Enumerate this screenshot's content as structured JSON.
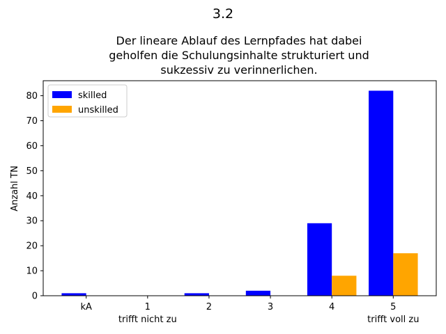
{
  "chart_data": {
    "type": "bar",
    "suptitle": "3.2",
    "title_lines": [
      "Der lineare Ablauf des Lernpfades hat dabei",
      "geholfen die Schulungsinhalte strukturiert und",
      "sukzessiv zu verinnerlichen."
    ],
    "xlabel": "",
    "ylabel": "Anzahl TN",
    "categories": [
      "kA",
      "1",
      "2",
      "3",
      "4",
      "5"
    ],
    "category_sublabels": [
      "",
      "trifft nicht zu",
      "",
      "",
      "",
      "trifft voll zu"
    ],
    "series": [
      {
        "name": "skilled",
        "color": "#0000ff",
        "values": [
          1,
          0,
          1,
          2,
          29,
          82
        ]
      },
      {
        "name": "unskilled",
        "color": "#ffa500",
        "values": [
          0,
          0,
          0,
          0,
          8,
          17
        ]
      }
    ],
    "ylim": [
      0,
      86
    ],
    "yticks": [
      0,
      10,
      20,
      30,
      40,
      50,
      60,
      70,
      80
    ],
    "grid": false,
    "legend_position": "top-left"
  }
}
